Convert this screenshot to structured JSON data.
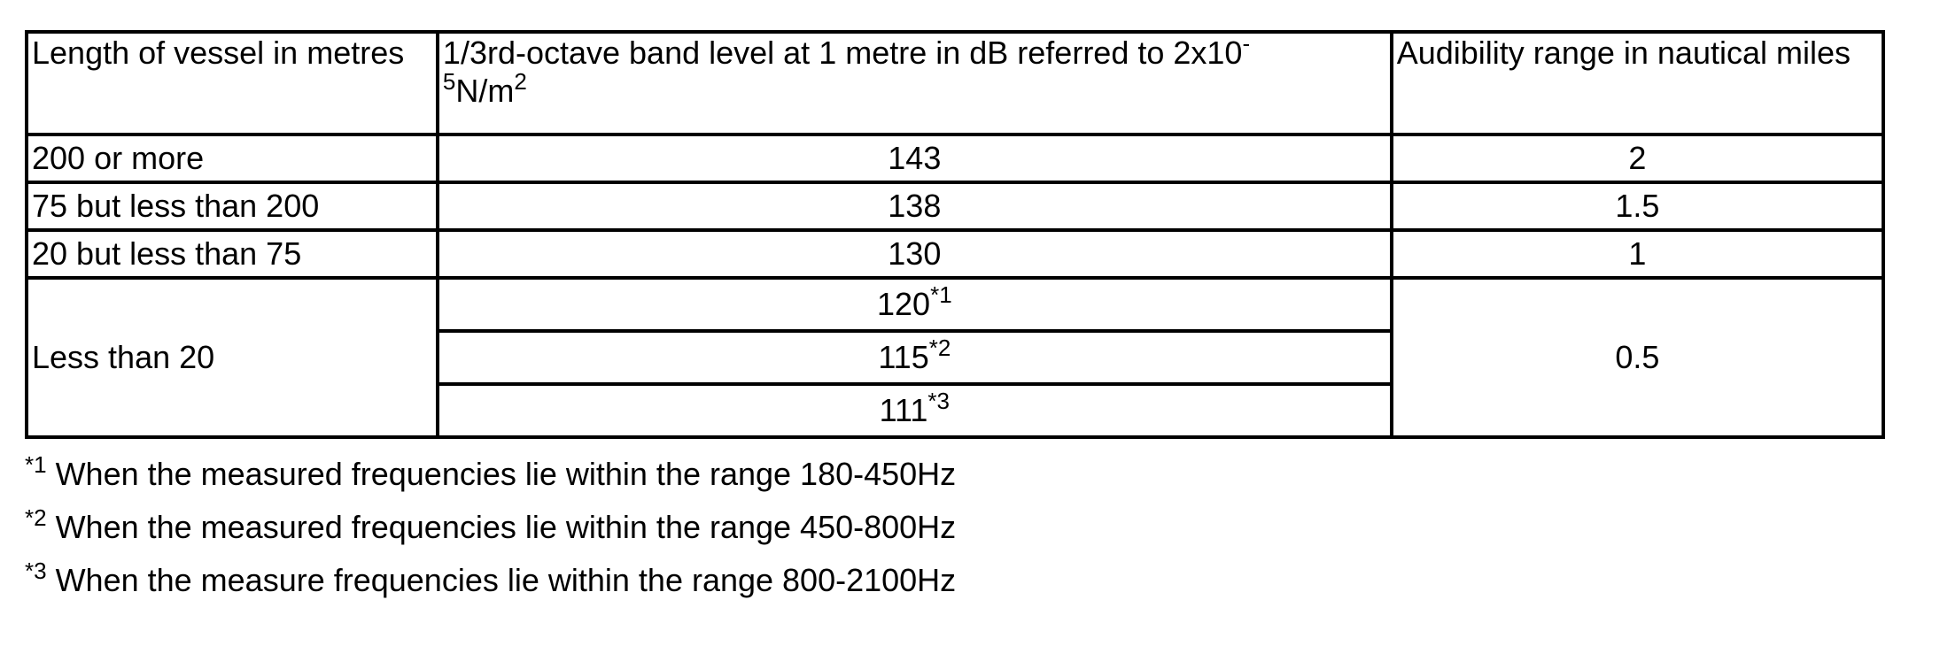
{
  "table": {
    "headers": {
      "length": "Length of vessel in metres",
      "band_level_main": "1/3rd-octave band level at 1 metre in dB referred to 2x10",
      "band_level_exp_line1": "-",
      "band_level_exp_line2": "5",
      "band_level_unit": "N/m",
      "band_level_unit_exp": "2",
      "range": "Audibility range in nautical miles"
    },
    "rows": [
      {
        "length": "200 or more",
        "level": "143",
        "range": "2"
      },
      {
        "length": "75 but less than 200",
        "level": "138",
        "range": "1.5"
      },
      {
        "length": "20 but less than 75",
        "level": "130",
        "range": "1"
      }
    ],
    "last_group": {
      "length": "Less than 20",
      "range": "0.5",
      "levels": [
        {
          "value": "120",
          "mark": "*1"
        },
        {
          "value": "115",
          "mark": "*2"
        },
        {
          "value": "111",
          "mark": "*3"
        }
      ]
    }
  },
  "footnotes": [
    {
      "mark": "*1",
      "text": "When the measured frequencies lie within the range 180-450Hz"
    },
    {
      "mark": "*2",
      "text": "When the measured frequencies lie within the range 450-800Hz"
    },
    {
      "mark": "*3",
      "text": "When the measure frequencies lie within the range 800-2100Hz"
    }
  ]
}
